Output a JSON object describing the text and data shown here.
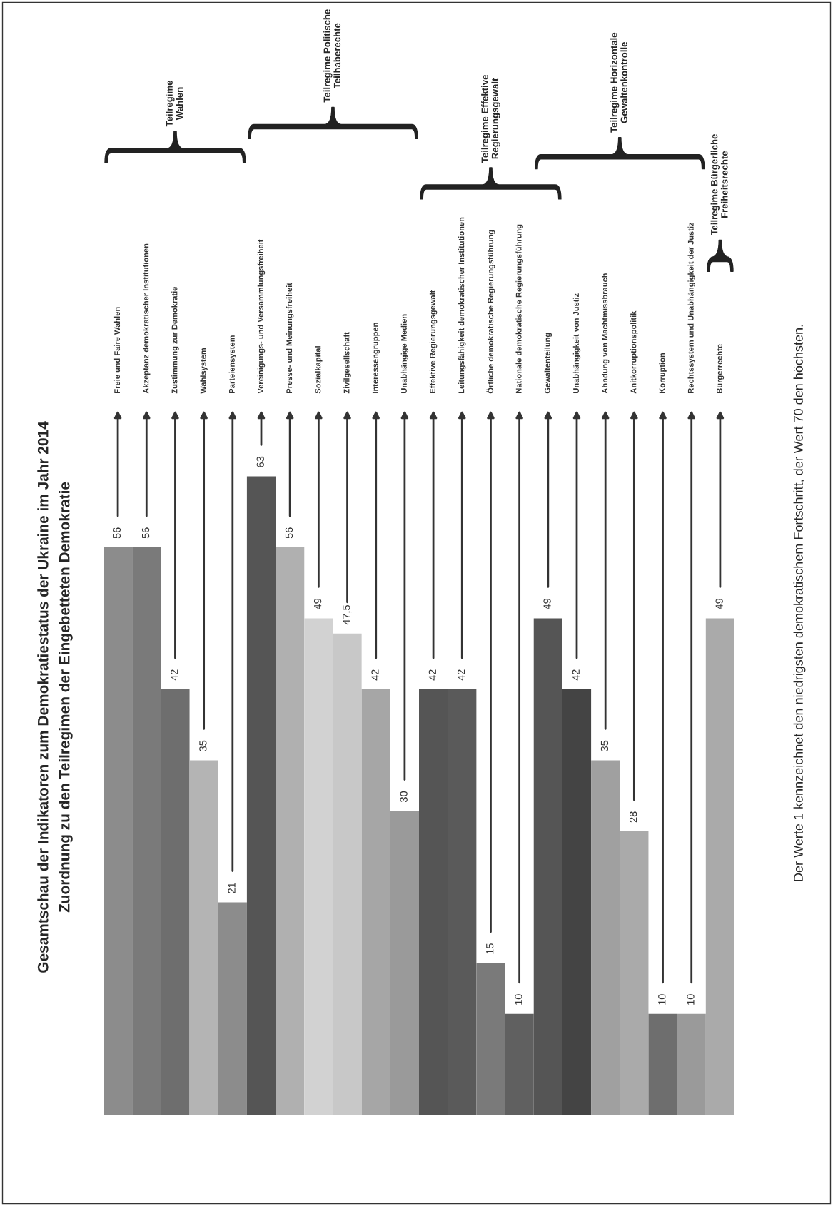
{
  "chart_data": {
    "type": "bar",
    "title": "Gesamtschau der Indikatoren zum Demokratiestatus der Ukraine im Jahr 2014",
    "subtitle": "Zuordnung zu den Teilregimen der Eingebetteten Demokratie",
    "categories": [
      "Freie und Faire Wahlen",
      "Akzeptanz demokratischer Institutionen",
      "Zustimmung zur Demokratie",
      "Wahlsystem",
      "Parteiensystem",
      "Vereinigungs- und Versammlungsfreiheit",
      "Presse- und Meinungsfreiheit",
      "Sozialkapital",
      "Zivilgesellschaft",
      "Interessengruppen",
      "Unabhängige Medien",
      "Effektive Regierungsgewalt",
      "Leitungsfähigkeit demokratischer Institutionen",
      "Örtliche demokratische Regierungsführung",
      "Nationale demokratische Regierungsführung",
      "Gewaltenteilung",
      "Unabhängigkeit von Justiz",
      "Ahndung von Machtmissbrauch",
      "Anitkorruptionspolitik",
      "Korruption",
      "Rechtssystem und Unabhängigkeit der Justiz",
      "Bürgerrechte"
    ],
    "values": [
      56,
      56,
      42,
      35,
      21,
      63,
      56,
      49,
      47.5,
      42,
      30,
      42,
      42,
      15,
      10,
      49,
      42,
      35,
      28,
      10,
      10,
      49
    ],
    "value_labels": [
      "56",
      "56",
      "42",
      "35",
      "21",
      "63",
      "56",
      "49",
      "47,5",
      "42",
      "30",
      "42",
      "42",
      "15",
      "10",
      "49",
      "42",
      "35",
      "28",
      "10",
      "10",
      "49"
    ],
    "colors": [
      "#8c8c8c",
      "#7a7a7a",
      "#6e6e6e",
      "#b4b4b4",
      "#8c8c8c",
      "#555555",
      "#b0b0b0",
      "#d2d2d2",
      "#c8c8c8",
      "#a6a6a6",
      "#9a9a9a",
      "#555555",
      "#5a5a5a",
      "#7a7a7a",
      "#606060",
      "#555555",
      "#444444",
      "#a0a0a0",
      "#aaaaaa",
      "#6e6e6e",
      "#9a9a9a",
      "#aaaaaa"
    ],
    "annotations": [
      "Teilregime Wahlen",
      "Teilregime Politische Teilhaberechte",
      "Teilregime Effektive Regierungsgewalt",
      "Teilregime Horizontale Gewaltenkontrolle",
      "Teilregime Bürgerliche Freiheitsrechte",
      "Der Werte 1 kennzeichnet den niedrigsten demokratischem Fortschritt, der Wert 70 den höchsten."
    ],
    "grid": false,
    "legend": false
  }
}
